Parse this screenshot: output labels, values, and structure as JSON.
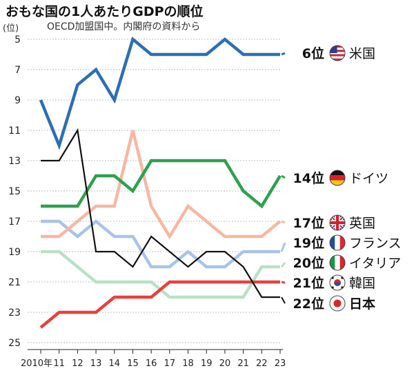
{
  "chart_data": {
    "type": "line",
    "title": "おもな国の1人あたりGDPの順位",
    "subtitle": "OECD加盟国中。内閣府の資料から",
    "ylabel": "(位)",
    "xlabel": "",
    "y_inverted": true,
    "ylim": [
      25,
      5
    ],
    "y_ticks": [
      5,
      7,
      9,
      11,
      13,
      15,
      17,
      19,
      21,
      23,
      25
    ],
    "x": [
      2010,
      2011,
      2012,
      2013,
      2014,
      2015,
      2016,
      2017,
      2018,
      2019,
      2020,
      2021,
      2022,
      2023
    ],
    "x_tick_labels": [
      "2010年",
      "11",
      "12",
      "13",
      "14",
      "15",
      "16",
      "17",
      "18",
      "19",
      "20",
      "21",
      "22",
      "23"
    ],
    "grid": true,
    "series": [
      {
        "name": "米国",
        "rank_label": "6位",
        "flag": "us-flag",
        "color": "#2e6db5",
        "values": [
          9,
          12,
          8,
          7,
          9,
          5,
          6,
          6,
          6,
          6,
          5,
          6,
          6,
          6
        ]
      },
      {
        "name": "ドイツ",
        "rank_label": "14位",
        "flag": "de-flag",
        "color": "#2ea04f",
        "values": [
          16,
          16,
          16,
          14,
          14,
          15,
          13,
          13,
          13,
          13,
          13,
          15,
          16,
          14
        ]
      },
      {
        "name": "英国",
        "rank_label": "17位",
        "flag": "uk-flag",
        "color": "#f6b7a3",
        "values": [
          18,
          18,
          17,
          16,
          16,
          11,
          16,
          18,
          16,
          17,
          18,
          18,
          18,
          17
        ]
      },
      {
        "name": "フランス",
        "rank_label": "19位",
        "flag": "fr-flag",
        "color": "#a9c3e8",
        "values": [
          17,
          17,
          18,
          17,
          18,
          18,
          20,
          20,
          19,
          20,
          20,
          19,
          19,
          19
        ]
      },
      {
        "name": "イタリア",
        "rank_label": "20位",
        "flag": "it-flag",
        "color": "#b9e0c6",
        "values": [
          19,
          19,
          20,
          21,
          21,
          21,
          21,
          22,
          22,
          22,
          22,
          22,
          20,
          20
        ]
      },
      {
        "name": "韓国",
        "rank_label": "21位",
        "flag": "kr-flag",
        "color": "#e8403c",
        "values": [
          24,
          23,
          23,
          23,
          22,
          22,
          22,
          21,
          21,
          21,
          21,
          21,
          21,
          21
        ]
      },
      {
        "name": "日本",
        "rank_label": "22位",
        "flag": "jp-flag",
        "color": "#111111",
        "values": [
          13,
          13,
          11,
          19,
          19,
          20,
          18,
          19,
          20,
          19,
          19,
          20,
          22,
          22
        ]
      }
    ]
  }
}
